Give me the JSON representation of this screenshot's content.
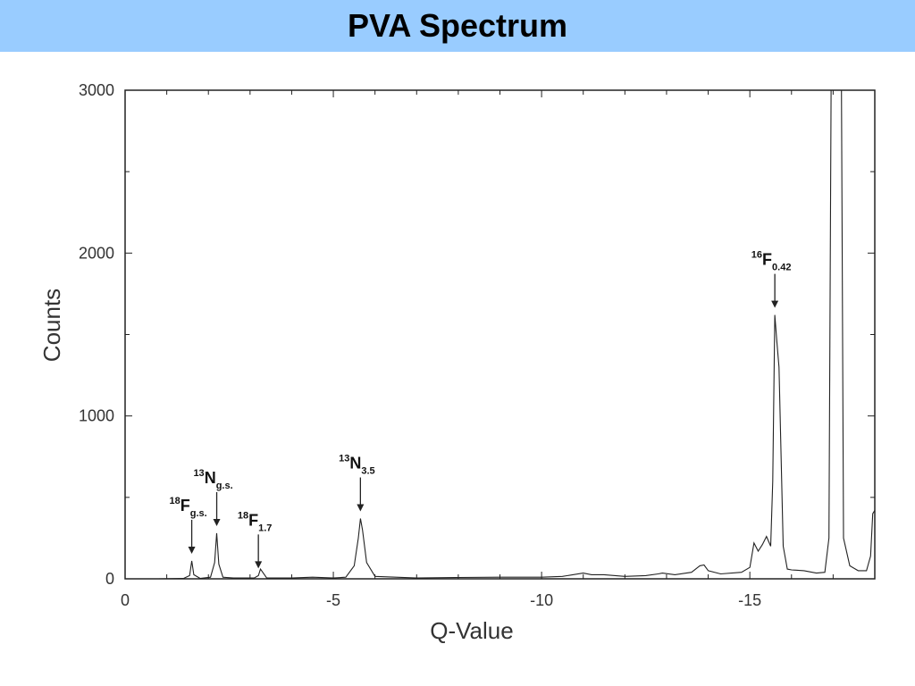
{
  "slide": {
    "title": "PVA Spectrum"
  },
  "chart_data": {
    "type": "line",
    "xlabel": "Q-Value",
    "ylabel": "Counts",
    "xlim": [
      0,
      -18
    ],
    "ylim": [
      0,
      3000
    ],
    "x_ticks": [
      0,
      -5,
      -10,
      -15
    ],
    "x_tick_labels": [
      "0",
      "-5",
      "-10",
      "-15"
    ],
    "y_ticks": [
      0,
      1000,
      2000,
      3000
    ],
    "y_tick_labels": [
      "0",
      "1000",
      "2000",
      "3000"
    ],
    "grid": false,
    "line_color": "#222222",
    "series": [
      {
        "x": [
          0,
          -0.8,
          -1.4,
          -1.55,
          -1.6,
          -1.65,
          -1.8,
          -2.05,
          -2.15,
          -2.2,
          -2.25,
          -2.35,
          -2.6,
          -3.1,
          -3.2,
          -3.25,
          -3.4,
          -4.0,
          -4.5,
          -5.0,
          -5.3,
          -5.5,
          -5.6,
          -5.65,
          -5.7,
          -5.8,
          -6.0,
          -7.0,
          -8.0,
          -9.0,
          -10.0,
          -10.5,
          -11.0,
          -11.2,
          -11.5,
          -12.0,
          -12.5,
          -12.8,
          -12.9,
          -13.2,
          -13.6,
          -13.8,
          -13.9,
          -14.0,
          -14.3,
          -14.8,
          -15.0,
          -15.1,
          -15.2,
          -15.3,
          -15.4,
          -15.5,
          -15.55,
          -15.6,
          -15.65,
          -15.7,
          -15.8,
          -15.9,
          -16.0,
          -16.3,
          -16.6,
          -16.8,
          -16.9,
          -16.95,
          -17.2,
          -17.25,
          -17.4,
          -17.6,
          -17.8,
          -17.9,
          -17.95,
          -18.0
        ],
        "y": [
          0,
          0,
          2,
          20,
          110,
          25,
          3,
          10,
          100,
          280,
          90,
          10,
          5,
          5,
          20,
          60,
          5,
          5,
          10,
          5,
          10,
          80,
          250,
          370,
          300,
          100,
          15,
          5,
          8,
          10,
          10,
          15,
          35,
          25,
          25,
          15,
          20,
          30,
          35,
          25,
          40,
          80,
          85,
          50,
          30,
          40,
          70,
          220,
          170,
          210,
          260,
          200,
          600,
          1620,
          1450,
          1300,
          200,
          60,
          55,
          50,
          35,
          40,
          250,
          3000,
          3000,
          250,
          80,
          50,
          50,
          140,
          400,
          420
        ]
      }
    ],
    "annotations": [
      {
        "base": "F",
        "mass": "18",
        "sub": "g.s.",
        "x": -1.6
      },
      {
        "base": "N",
        "mass": "13",
        "sub": "g.s.",
        "x": -2.2
      },
      {
        "base": "F",
        "mass": "18",
        "sub": "1.7",
        "x": -3.2
      },
      {
        "base": "N",
        "mass": "13",
        "sub": "3.5",
        "x": -5.65
      },
      {
        "base": "F",
        "mass": "16",
        "sub": "0.42",
        "x": -15.6
      }
    ]
  }
}
